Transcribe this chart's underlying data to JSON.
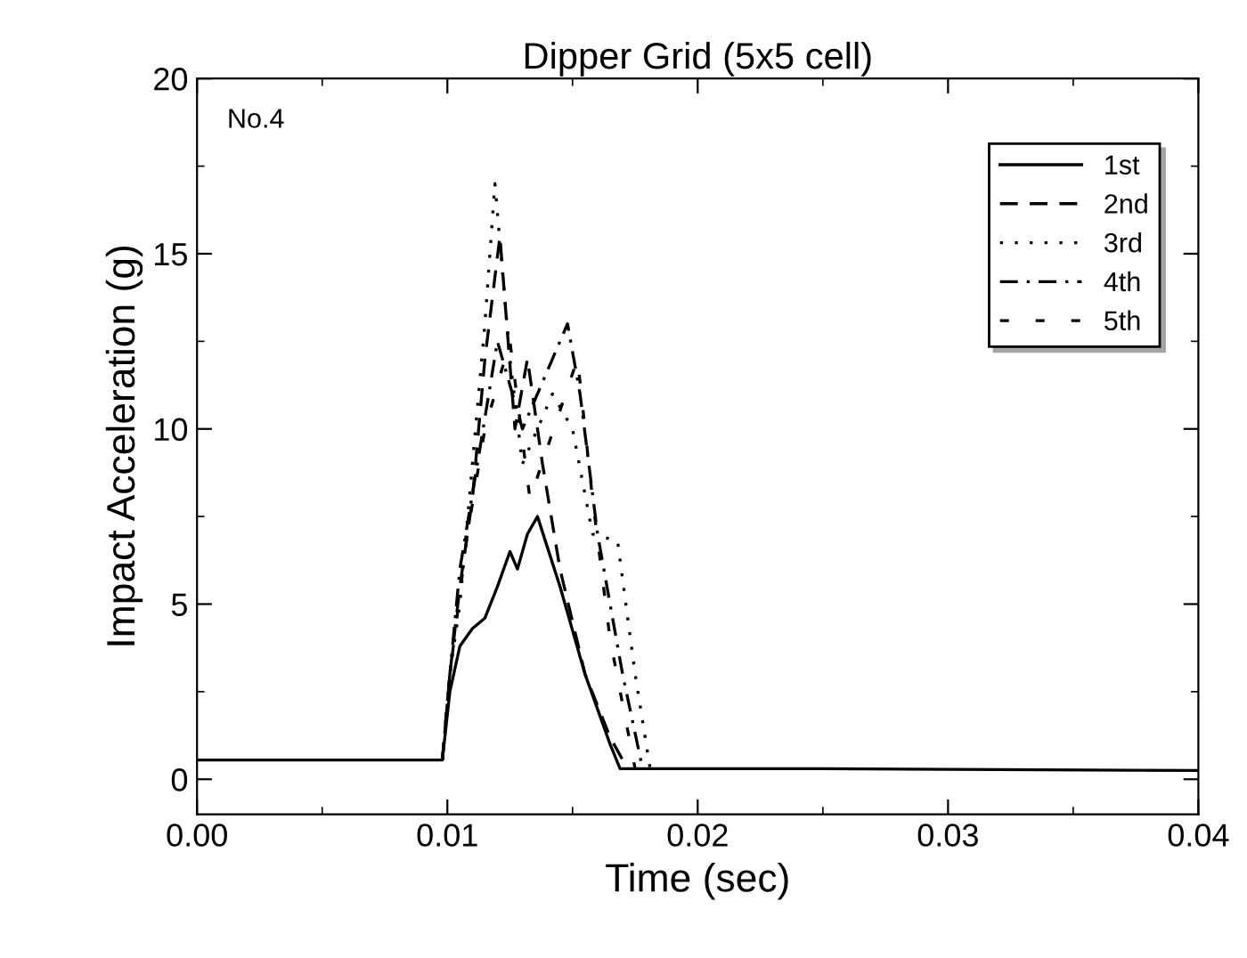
{
  "chart_data": {
    "type": "line",
    "title": "Dipper Grid (5x5 cell)",
    "xlabel": "Time (sec)",
    "ylabel": "Impact Acceleration (g)",
    "annotations": [
      "No.4"
    ],
    "xlim": [
      0,
      0.04
    ],
    "ylim": [
      -1,
      20
    ],
    "xticks": [
      {
        "value": 0,
        "label": "0.00"
      },
      0.01,
      0.02,
      0.03,
      0.04
    ],
    "yticks": [
      0,
      5,
      10,
      15,
      20
    ],
    "grid": false,
    "legend": "top right",
    "series": [
      {
        "name": "1st",
        "color": "#000000",
        "line_style": "solid",
        "x": [
          0,
          0.005,
          0.0098,
          0.0101,
          0.0105,
          0.011,
          0.0115,
          0.012,
          0.0125,
          0.0128,
          0.0132,
          0.0136,
          0.0145,
          0.0155,
          0.0165,
          0.0169,
          0.025,
          0.04
        ],
        "values": [
          0.55,
          0.55,
          0.55,
          2.5,
          3.8,
          4.3,
          4.6,
          5.5,
          6.5,
          6.0,
          7.0,
          7.5,
          5.5,
          3.0,
          1.0,
          0.3,
          0.3,
          0.25
        ]
      },
      {
        "name": "2nd",
        "color": "#000000",
        "line_style": "dashed",
        "x": [
          0.0098,
          0.0101,
          0.0105,
          0.011,
          0.0115,
          0.0121,
          0.0127,
          0.0132,
          0.0138,
          0.0145,
          0.0155,
          0.0165,
          0.0172
        ],
        "values": [
          0.55,
          3.0,
          5.5,
          8.0,
          12.0,
          15.5,
          10.0,
          12.0,
          9.0,
          6.0,
          3.0,
          1.2,
          0.3
        ]
      },
      {
        "name": "3rd",
        "color": "#000000",
        "line_style": "dotted",
        "x": [
          0.0098,
          0.0101,
          0.0105,
          0.011,
          0.0115,
          0.0119,
          0.0125,
          0.013,
          0.0142,
          0.015,
          0.0158,
          0.0168,
          0.0175,
          0.0181
        ],
        "values": [
          0.55,
          3.0,
          5.0,
          9.0,
          13.0,
          17.0,
          12.0,
          9.0,
          11.0,
          10.0,
          7.0,
          6.8,
          3.0,
          0.3
        ]
      },
      {
        "name": "4th",
        "color": "#000000",
        "line_style": "dashdot",
        "x": [
          0.0098,
          0.0101,
          0.0105,
          0.0112,
          0.012,
          0.013,
          0.0148,
          0.0153,
          0.016,
          0.017,
          0.0178
        ],
        "values": [
          0.55,
          3.0,
          6.0,
          9.0,
          12.5,
          10.0,
          13.0,
          11.0,
          7.0,
          3.0,
          0.3
        ]
      },
      {
        "name": "5th",
        "color": "#000000",
        "line_style": "loosely dashed",
        "x": [
          0.0098,
          0.0101,
          0.0108,
          0.0115,
          0.0125,
          0.0133,
          0.0152,
          0.0158,
          0.0165,
          0.0175
        ],
        "values": [
          0.55,
          3.0,
          7.0,
          10.0,
          12.5,
          8.0,
          12.0,
          8.0,
          4.0,
          0.3
        ]
      }
    ]
  }
}
